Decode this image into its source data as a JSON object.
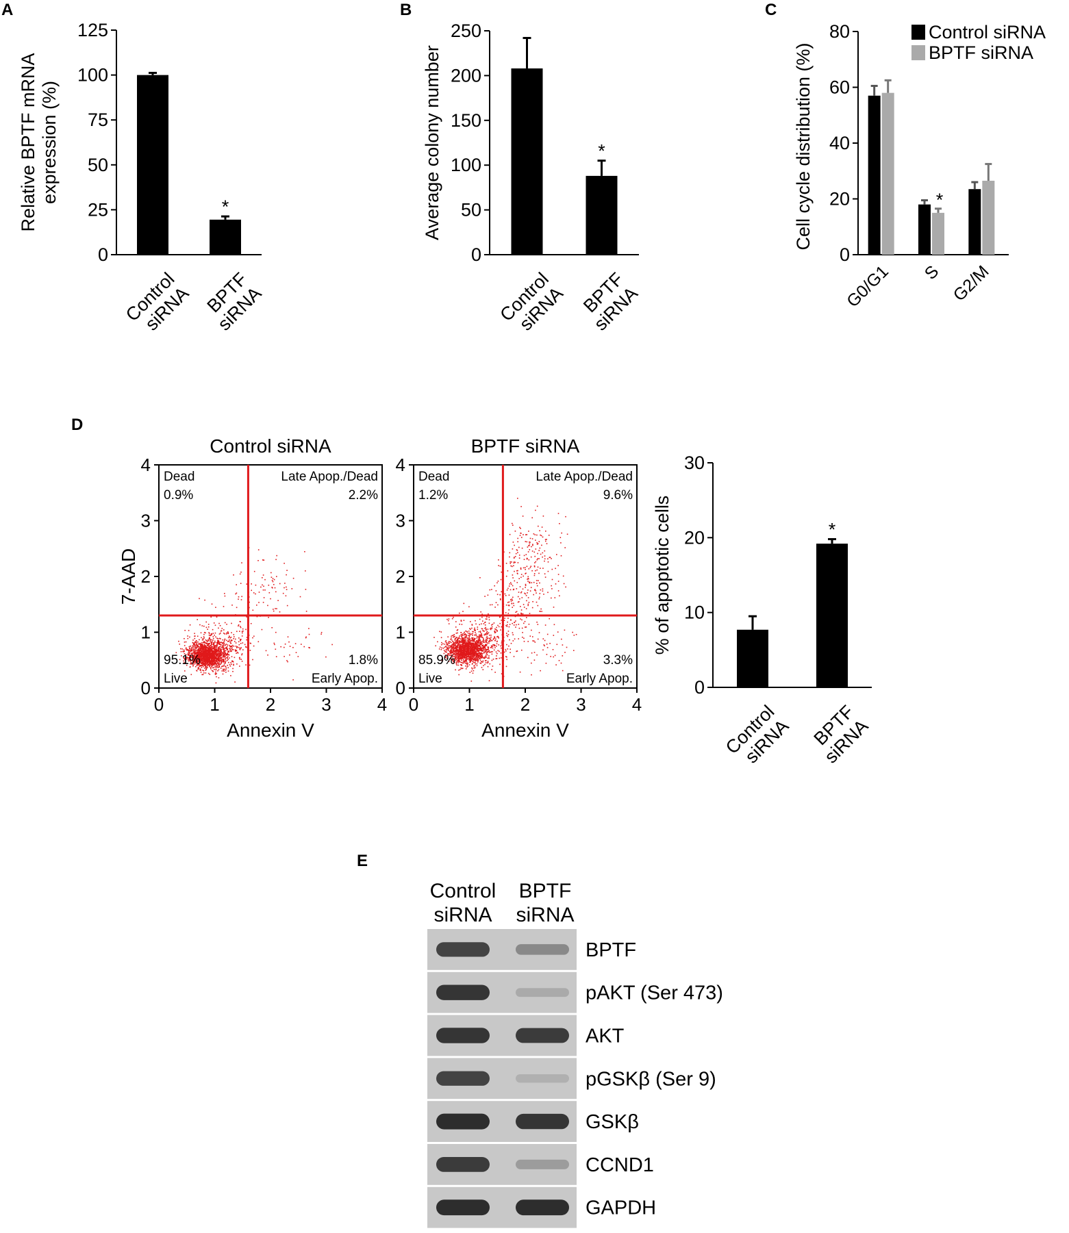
{
  "panels": {
    "A": {
      "letter": "A"
    },
    "B": {
      "letter": "B"
    },
    "C": {
      "letter": "C"
    },
    "D": {
      "letter": "D"
    },
    "E": {
      "letter": "E"
    }
  },
  "colors": {
    "bar_dark": "#000000",
    "bar_light": "#aaaaaa",
    "flow_gate": "#e0191b",
    "flow_dot": "#e0191b",
    "blot_bg": "#c8c8c8",
    "band": "#2a2a2a"
  },
  "chart_data": [
    {
      "id": "A",
      "type": "bar",
      "categories": [
        "Control siRNA",
        "BPTF siRNA"
      ],
      "category_lines": [
        [
          "Control",
          "siRNA"
        ],
        [
          "BPTF",
          "siRNA"
        ]
      ],
      "values": [
        100,
        19.5
      ],
      "errors": [
        1.2,
        1.8
      ],
      "significance": [
        "",
        "*"
      ],
      "ylabel_lines": [
        "Relative BPTF mRNA",
        "expression (%)"
      ],
      "ylim": [
        0,
        125
      ],
      "yticks": [
        0,
        25,
        50,
        75,
        100,
        125
      ]
    },
    {
      "id": "B",
      "type": "bar",
      "categories": [
        "Control siRNA",
        "BPTF siRNA"
      ],
      "category_lines": [
        [
          "Control",
          "siRNA"
        ],
        [
          "BPTF",
          "siRNA"
        ]
      ],
      "values": [
        208,
        88
      ],
      "errors": [
        34,
        17
      ],
      "significance": [
        "",
        "*"
      ],
      "ylabel_lines": [
        "Average colony number"
      ],
      "ylim": [
        0,
        250
      ],
      "yticks": [
        0,
        50,
        100,
        150,
        200,
        250
      ]
    },
    {
      "id": "C",
      "type": "bar",
      "categories": [
        "G0/G1",
        "S",
        "G2/M"
      ],
      "series": [
        {
          "name": "Control siRNA",
          "values": [
            57,
            18,
            23.5
          ],
          "errors": [
            3.5,
            1.5,
            2.5
          ]
        },
        {
          "name": "BPTF siRNA",
          "values": [
            58,
            15,
            26.5
          ],
          "errors": [
            4.5,
            1.5,
            6
          ]
        }
      ],
      "significance": [
        [
          "",
          ""
        ],
        [
          "",
          "*"
        ],
        [
          "",
          ""
        ]
      ],
      "ylabel_lines": [
        "Cell cycle distribution (%)"
      ],
      "ylim": [
        0,
        80
      ],
      "yticks": [
        0,
        20,
        40,
        60,
        80
      ],
      "legend_position": "top-right"
    },
    {
      "id": "D1",
      "type": "scatter",
      "title": "Control siRNA",
      "xlabel": "Annexin V",
      "ylabel": "7-AAD",
      "xlim": [
        0,
        4
      ],
      "ylim": [
        0,
        4
      ],
      "xticks": [
        0,
        1,
        2,
        3,
        4
      ],
      "yticks": [
        0,
        1,
        2,
        3,
        4
      ],
      "gate": {
        "x": 1.6,
        "y": 1.3
      },
      "quadrants": {
        "top_left": {
          "name": "Dead",
          "value": "0.9%"
        },
        "top_right": {
          "name": "Late Apop./Dead",
          "value": "2.2%"
        },
        "bottom_left": {
          "name": "Live",
          "value": "95.1%"
        },
        "bottom_right": {
          "name": "Early Apop.",
          "value": "1.8%"
        }
      },
      "populations": [
        {
          "cx": 0.85,
          "cy": 0.6,
          "sx": 0.16,
          "sy": 0.11,
          "n": 1500
        },
        {
          "cx": 1.05,
          "cy": 0.7,
          "sx": 0.28,
          "sy": 0.22,
          "n": 400
        },
        {
          "cx": 2.0,
          "cy": 1.9,
          "sx": 0.3,
          "sy": 0.3,
          "n": 70
        },
        {
          "cx": 2.2,
          "cy": 0.8,
          "sx": 0.4,
          "sy": 0.25,
          "n": 40
        },
        {
          "cx": 1.4,
          "cy": 1.4,
          "sx": 0.25,
          "sy": 0.3,
          "n": 40
        }
      ]
    },
    {
      "id": "D2",
      "type": "scatter",
      "title": "BPTF siRNA",
      "xlabel": "Annexin V",
      "ylabel": "",
      "xlim": [
        0,
        4
      ],
      "ylim": [
        0,
        4
      ],
      "xticks": [
        0,
        1,
        2,
        3,
        4
      ],
      "yticks": [
        0,
        1,
        2,
        3,
        4
      ],
      "gate": {
        "x": 1.6,
        "y": 1.3
      },
      "quadrants": {
        "top_left": {
          "name": "Dead",
          "value": "1.2%"
        },
        "top_right": {
          "name": "Late Apop./Dead",
          "value": "9.6%"
        },
        "bottom_left": {
          "name": "Live",
          "value": "85.9%"
        },
        "bottom_right": {
          "name": "Early Apop.",
          "value": "3.3%"
        }
      },
      "populations": [
        {
          "cx": 0.95,
          "cy": 0.7,
          "sx": 0.18,
          "sy": 0.12,
          "n": 1400
        },
        {
          "cx": 1.2,
          "cy": 0.85,
          "sx": 0.3,
          "sy": 0.25,
          "n": 400
        },
        {
          "cx": 2.1,
          "cy": 2.2,
          "sx": 0.28,
          "sy": 0.45,
          "n": 260
        },
        {
          "cx": 1.75,
          "cy": 1.45,
          "sx": 0.25,
          "sy": 0.3,
          "n": 120
        },
        {
          "cx": 2.3,
          "cy": 0.8,
          "sx": 0.4,
          "sy": 0.25,
          "n": 60
        }
      ]
    },
    {
      "id": "D3",
      "type": "bar",
      "categories": [
        "Control siRNA",
        "BPTF siRNA"
      ],
      "category_lines": [
        [
          "Control",
          "siRNA"
        ],
        [
          "BPTF",
          "siRNA"
        ]
      ],
      "values": [
        7.7,
        19.2
      ],
      "errors": [
        1.8,
        0.6
      ],
      "significance": [
        "",
        "*"
      ],
      "ylabel_lines": [
        "% of apoptotic cells"
      ],
      "ylim": [
        0,
        30
      ],
      "yticks": [
        0,
        10,
        20,
        30
      ]
    }
  ],
  "blot": {
    "lane_headers": [
      [
        "Control",
        "siRNA"
      ],
      [
        "BPTF",
        "siRNA"
      ]
    ],
    "rows": [
      {
        "label": "BPTF",
        "intensity": [
          0.85,
          0.35
        ]
      },
      {
        "label": "pAKT (Ser 473)",
        "intensity": [
          0.95,
          0.12
        ]
      },
      {
        "label": "AKT",
        "intensity": [
          0.95,
          0.9
        ]
      },
      {
        "label": "pGSKβ (Ser 9)",
        "intensity": [
          0.85,
          0.08
        ]
      },
      {
        "label": "GSKβ",
        "intensity": [
          1.0,
          0.95
        ]
      },
      {
        "label": "CCND1",
        "intensity": [
          0.9,
          0.22
        ]
      },
      {
        "label": "GAPDH",
        "intensity": [
          1.0,
          1.0
        ]
      }
    ]
  }
}
